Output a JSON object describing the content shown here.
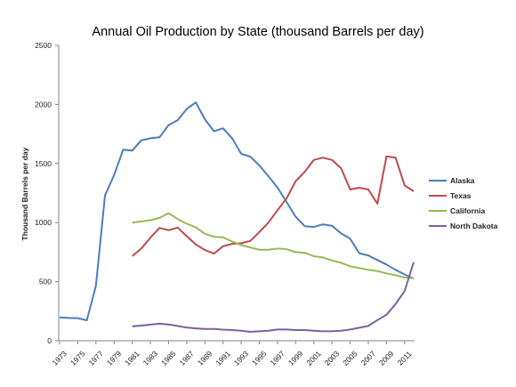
{
  "chart_data": {
    "type": "line",
    "title": "Annual Oil Production by State (thousand Barrels per day)",
    "xlabel": "",
    "ylabel": "Thousand Barrels per day",
    "ylim": [
      0,
      2500
    ],
    "yticks": [
      "0",
      "500",
      "1000",
      "1500",
      "2000",
      "2500"
    ],
    "xlim": [
      1973,
      2012
    ],
    "xticks": [
      "1973",
      "1975",
      "1977",
      "1979",
      "1981",
      "1983",
      "1985",
      "1987",
      "1989",
      "1991",
      "1993",
      "1995",
      "1997",
      "1999",
      "2001",
      "2003",
      "2005",
      "2007",
      "2009",
      "2011"
    ],
    "grid": false,
    "legend_position": "right",
    "series": [
      {
        "name": "Alaska",
        "color": "#4a7ebb",
        "x": [
          1973,
          1974,
          1975,
          1976,
          1977,
          1978,
          1979,
          1980,
          1981,
          1982,
          1983,
          1984,
          1985,
          1986,
          1987,
          1988,
          1989,
          1990,
          1991,
          1992,
          1993,
          1994,
          1995,
          1996,
          1997,
          1998,
          1999,
          2000,
          2001,
          2002,
          2003,
          2004,
          2005,
          2006,
          2007,
          2008,
          2009,
          2010,
          2011,
          2012
        ],
        "values": [
          198,
          193,
          191,
          173,
          464,
          1229,
          1401,
          1617,
          1609,
          1696,
          1714,
          1722,
          1825,
          1867,
          1962,
          2017,
          1874,
          1773,
          1798,
          1714,
          1582,
          1559,
          1484,
          1393,
          1296,
          1175,
          1050,
          970,
          963,
          985,
          974,
          908,
          864,
          741,
          722,
          683,
          645,
          600,
          561,
          526
        ]
      },
      {
        "name": "Texas",
        "color": "#be4b48",
        "x": [
          1981,
          1982,
          1983,
          1984,
          1985,
          1986,
          1987,
          1988,
          1989,
          1990,
          1991,
          1992,
          1993,
          1994,
          1995,
          1996,
          1997,
          1998,
          1999,
          2000,
          2001,
          2002,
          2003,
          2004,
          2005,
          2006,
          2007,
          2008,
          2009,
          2010,
          2011,
          2012
        ],
        "values": [
          716,
          780,
          873,
          955,
          935,
          958,
          885,
          815,
          768,
          737,
          800,
          820,
          825,
          845,
          920,
          1000,
          1105,
          1205,
          1350,
          1430,
          1530,
          1550,
          1530,
          1460,
          1280,
          1295,
          1280,
          1160,
          1560,
          1550,
          1315,
          1265
        ]
      },
      {
        "name": "California",
        "color": "#98b954",
        "x": [
          1981,
          1982,
          1983,
          1984,
          1985,
          1986,
          1987,
          1988,
          1989,
          1990,
          1991,
          1992,
          1993,
          1994,
          1995,
          1996,
          1997,
          1998,
          1999,
          2000,
          2001,
          2002,
          2003,
          2004,
          2005,
          2006,
          2007,
          2008,
          2009,
          2010,
          2011,
          2012
        ],
        "values": [
          1000,
          1010,
          1020,
          1040,
          1080,
          1030,
          990,
          960,
          905,
          880,
          875,
          840,
          810,
          790,
          770,
          770,
          780,
          775,
          750,
          745,
          715,
          705,
          680,
          660,
          630,
          615,
          600,
          590,
          570,
          555,
          535,
          530
        ]
      },
      {
        "name": "North Dakota",
        "color": "#7d60a0",
        "x": [
          1981,
          1982,
          1983,
          1984,
          1985,
          1986,
          1987,
          1988,
          1989,
          1990,
          1991,
          1992,
          1993,
          1994,
          1995,
          1996,
          1997,
          1998,
          1999,
          2000,
          2001,
          2002,
          2003,
          2004,
          2005,
          2006,
          2007,
          2008,
          2009,
          2010,
          2011,
          2012
        ],
        "values": [
          123,
          128,
          136,
          145,
          138,
          125,
          112,
          105,
          100,
          100,
          94,
          90,
          85,
          75,
          80,
          85,
          95,
          95,
          90,
          90,
          85,
          80,
          80,
          85,
          95,
          110,
          125,
          175,
          220,
          310,
          420,
          665
        ]
      }
    ]
  }
}
